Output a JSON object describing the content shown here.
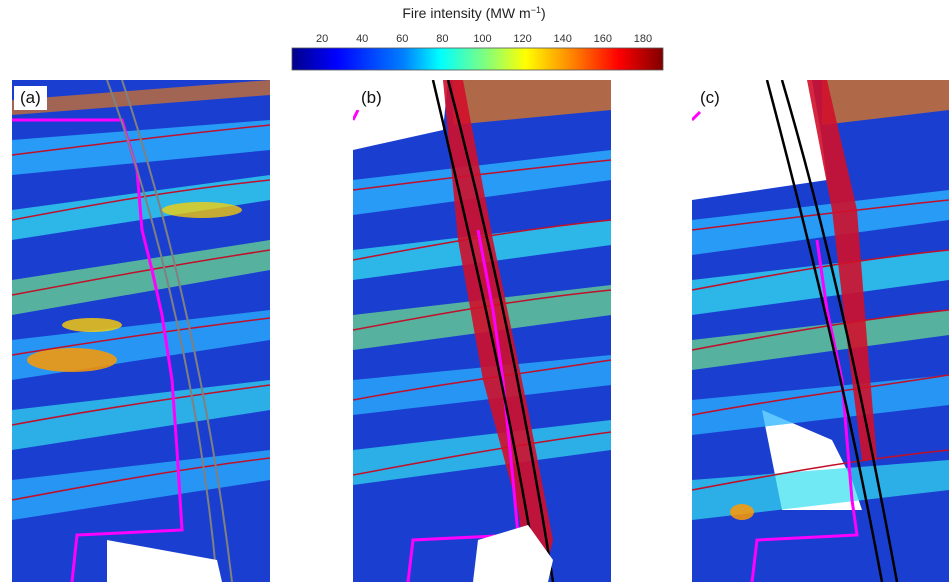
{
  "colorbar": {
    "title_text": "Fire intensity (MW m",
    "title_sup": "−1",
    "title_close": ")",
    "ticks": [
      "20",
      "40",
      "60",
      "80",
      "100",
      "120",
      "140",
      "160",
      "180"
    ],
    "range": [
      5,
      190
    ],
    "tick_values": [
      20,
      40,
      60,
      80,
      100,
      120,
      140,
      160,
      180
    ],
    "colors": [
      "#00008b",
      "#0000ff",
      "#007fff",
      "#00ffff",
      "#7fff7f",
      "#ffff00",
      "#ff7f00",
      "#ff0000",
      "#7f0000"
    ]
  },
  "panels": [
    {
      "label": "(a)"
    },
    {
      "label": "(b)"
    },
    {
      "label": "(c)"
    }
  ],
  "overlay_colors": {
    "contour": "#c0102a",
    "boundary": "#ff00ff",
    "track": "#000000",
    "track_a": "#808080",
    "background_blue": "#1a3fd0"
  }
}
